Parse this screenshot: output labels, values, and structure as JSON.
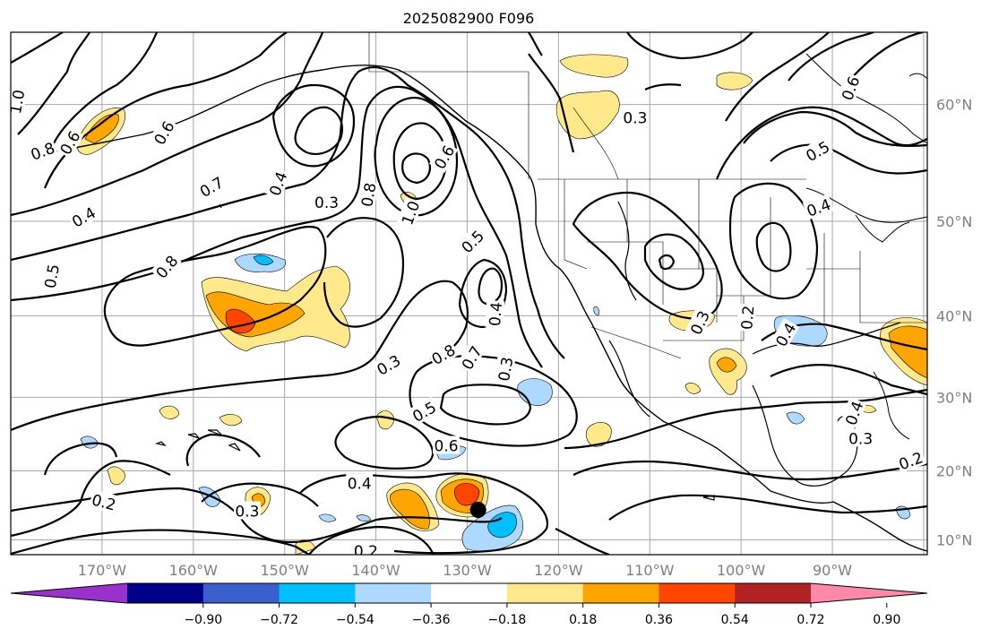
{
  "title": "2025082900 F096",
  "lon_labels": [
    "170°W",
    "160°W",
    "150°W",
    "140°W",
    "130°W",
    "120°W",
    "110°W",
    "100°W",
    "90°W"
  ],
  "lat_labels": [
    "60°N",
    "50°N",
    "40°N",
    "30°N",
    "20°N",
    "10°N"
  ],
  "colorbar": {
    "ticks": [
      "−0.90",
      "−0.72",
      "−0.54",
      "−0.36",
      "−0.18",
      "0.18",
      "0.36",
      "0.54",
      "0.72",
      "0.90"
    ],
    "colors": [
      "#9932cc",
      "#00008b",
      "#3a5fcd",
      "#00bfff",
      "#add8ff",
      "#ffffff",
      "#ffe98a",
      "#ffa500",
      "#ff4500",
      "#b22222",
      "#ff88aa"
    ]
  },
  "contour_labels": [
    {
      "text": "1.0",
      "lon": 179.3,
      "lat": 60.2,
      "rot": -80
    },
    {
      "text": "0.8",
      "lon": 176.5,
      "lat": 56.3,
      "rot": -20
    },
    {
      "text": "0.6",
      "lon": 173.5,
      "lat": 57.0,
      "rot": -60
    },
    {
      "text": "0.4",
      "lon": 172.0,
      "lat": 50.4,
      "rot": -30
    },
    {
      "text": "0.5",
      "lon": 175.5,
      "lat": 44.4,
      "rot": -80
    },
    {
      "text": "0.6",
      "lon": 163.2,
      "lat": 57.8,
      "rot": -60
    },
    {
      "text": "0.7",
      "lon": 158.0,
      "lat": 53.2,
      "rot": -30
    },
    {
      "text": "0.8",
      "lon": 162.9,
      "lat": 45.4,
      "rot": -50
    },
    {
      "text": "0.4",
      "lon": 150.7,
      "lat": 53.5,
      "rot": -70
    },
    {
      "text": "0.3",
      "lon": 145.4,
      "lat": 51.8,
      "rot": 0
    },
    {
      "text": "0.8",
      "lon": 140.8,
      "lat": 52.5,
      "rot": -80
    },
    {
      "text": "1.0",
      "lon": 136.2,
      "lat": 50.8,
      "rot": -70
    },
    {
      "text": "0.6",
      "lon": 132.5,
      "lat": 55.8,
      "rot": -60
    },
    {
      "text": "0.5",
      "lon": 129.4,
      "lat": 48.0,
      "rot": -45
    },
    {
      "text": "0.4",
      "lon": 126.9,
      "lat": 40.2,
      "rot": -85
    },
    {
      "text": "0.3",
      "lon": 125.8,
      "lat": 33.6,
      "rot": -80
    },
    {
      "text": "0.3",
      "lon": 138.6,
      "lat": 34.1,
      "rot": -30
    },
    {
      "text": "0.8",
      "lon": 132.6,
      "lat": 35.4,
      "rot": -30
    },
    {
      "text": "0.7",
      "lon": 129.5,
      "lat": 35.0,
      "rot": -60
    },
    {
      "text": "0.5",
      "lon": 134.7,
      "lat": 28.1,
      "rot": -30
    },
    {
      "text": "0.6",
      "lon": 132.3,
      "lat": 23.5,
      "rot": 0
    },
    {
      "text": "0.4",
      "lon": 141.8,
      "lat": 18.2,
      "rot": 0
    },
    {
      "text": "0.3",
      "lon": 154.1,
      "lat": 14.2,
      "rot": 0
    },
    {
      "text": "0.2",
      "lon": 169.8,
      "lat": 15.5,
      "rot": 15
    },
    {
      "text": "0.2",
      "lon": 141.1,
      "lat": 8.3,
      "rot": 0
    },
    {
      "text": "0.3",
      "lon": 111.6,
      "lat": 59.0,
      "rot": 0
    },
    {
      "text": "0.3",
      "lon": 104.5,
      "lat": 39.2,
      "rot": -65
    },
    {
      "text": "0.2",
      "lon": 99.3,
      "lat": 39.8,
      "rot": -85
    },
    {
      "text": "0.4",
      "lon": 95.1,
      "lat": 37.8,
      "rot": -60
    },
    {
      "text": "0.5",
      "lon": 91.6,
      "lat": 56.3,
      "rot": -30
    },
    {
      "text": "0.4",
      "lon": 91.5,
      "lat": 51.3,
      "rot": -20
    },
    {
      "text": "0.6",
      "lon": 88.0,
      "lat": 61.2,
      "rot": -70
    },
    {
      "text": "0.3",
      "lon": 86.9,
      "lat": 24.5,
      "rot": 0
    },
    {
      "text": "0.4",
      "lon": 87.6,
      "lat": 27.9,
      "rot": -70
    },
    {
      "text": "0.2",
      "lon": 81.4,
      "lat": 21.4,
      "rot": -20
    }
  ],
  "storm_marker": {
    "lon": 128.8,
    "lat": 14.4
  }
}
